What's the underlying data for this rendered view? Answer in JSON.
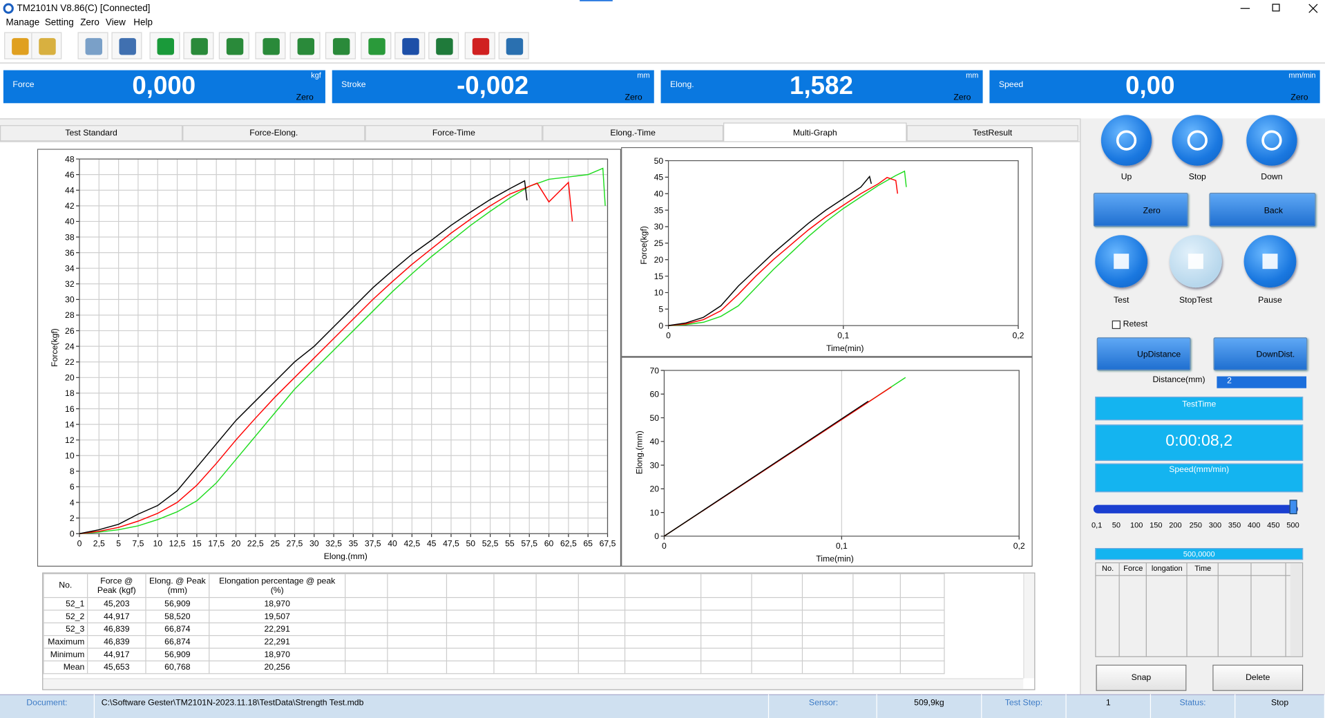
{
  "window": {
    "title": "TM2101N V8.86(C)  [Connected]"
  },
  "menu": [
    "Manage",
    "Setting",
    "Zero",
    "View",
    "Help"
  ],
  "displays": [
    {
      "label": "Force",
      "value": "0,000",
      "unit": "kgf",
      "action": "Zero"
    },
    {
      "label": "Stroke",
      "value": "-0,002",
      "unit": "mm",
      "action": "Zero"
    },
    {
      "label": "Elong.",
      "value": "1,582",
      "unit": "mm",
      "action": "Zero"
    },
    {
      "label": "Speed",
      "value": "0,00",
      "unit": "mm/min",
      "action": "Zero"
    }
  ],
  "tabs": [
    {
      "label": "Test Standard",
      "active": false
    },
    {
      "label": "Force-Elong.",
      "active": false
    },
    {
      "label": "Force-Time",
      "active": false
    },
    {
      "label": "Elong.-Time",
      "active": false
    },
    {
      "label": "Multi-Graph",
      "active": true
    },
    {
      "label": "TestResult",
      "active": false
    }
  ],
  "chart_data": [
    {
      "type": "line",
      "xlabel": "Elong.(mm)",
      "ylabel": "Force(kgf)",
      "grid": "both",
      "xlim": [
        0,
        67.5
      ],
      "ylim": [
        0,
        48
      ],
      "xticks": [
        0,
        {
          "value": 2.5,
          "label": "2,5"
        },
        5,
        {
          "value": 7.5,
          "label": "7,5"
        },
        10,
        {
          "value": 12.5,
          "label": "12,5"
        },
        15,
        {
          "value": 17.5,
          "label": "17,5"
        },
        20,
        {
          "value": 22.5,
          "label": "22,5"
        },
        25,
        {
          "value": 27.5,
          "label": "27,5"
        },
        30,
        {
          "value": 32.5,
          "label": "32,5"
        },
        35,
        {
          "value": 37.5,
          "label": "37,5"
        },
        40,
        {
          "value": 42.5,
          "label": "42,5"
        },
        45,
        {
          "value": 47.5,
          "label": "47,5"
        },
        50,
        {
          "value": 52.5,
          "label": "52,5"
        },
        55,
        {
          "value": 57.5,
          "label": "57,5"
        },
        60,
        {
          "value": 62.5,
          "label": "62,5"
        },
        65,
        {
          "value": 67.5,
          "label": "67,5"
        }
      ],
      "yticks": [
        0,
        2,
        4,
        6,
        8,
        10,
        12,
        14,
        16,
        18,
        20,
        22,
        24,
        26,
        28,
        30,
        32,
        34,
        36,
        38,
        40,
        42,
        44,
        46,
        48
      ],
      "series": [
        {
          "color": "#000000",
          "x": [
            0,
            2.5,
            5,
            7.5,
            10,
            12.5,
            15,
            17.5,
            20,
            22.5,
            25,
            27.5,
            30,
            32.5,
            35,
            37.5,
            40,
            42.5,
            45,
            47.5,
            50,
            52.5,
            55,
            56.9,
            57.2
          ],
          "values": [
            0,
            0.5,
            1.2,
            2.5,
            3.6,
            5.5,
            8.5,
            11.5,
            14.5,
            17,
            19.5,
            22,
            24,
            26.5,
            29,
            31.5,
            33.7,
            35.8,
            37.6,
            39.5,
            41.2,
            42.8,
            44.2,
            45.2,
            42.7
          ]
        },
        {
          "color": "#ff0000",
          "x": [
            0,
            2.5,
            5,
            7.5,
            10,
            12.5,
            15,
            17.5,
            20,
            22.5,
            25,
            27.5,
            30,
            32.5,
            35,
            37.5,
            40,
            42.5,
            45,
            47.5,
            50,
            52.5,
            55,
            58.5,
            60,
            61,
            62.5,
            63
          ],
          "values": [
            0,
            0.3,
            0.8,
            1.6,
            2.6,
            4,
            6.2,
            9,
            12,
            14.8,
            17.5,
            20,
            22.5,
            25,
            27.5,
            30,
            32.3,
            34.5,
            36.5,
            38.5,
            40.3,
            42,
            43.5,
            44.9,
            42.5,
            43.5,
            45,
            40
          ]
        },
        {
          "color": "#1fdc1f",
          "x": [
            0,
            2.5,
            5,
            7.5,
            10,
            12.5,
            15,
            17.5,
            20,
            22.5,
            25,
            27.5,
            30,
            32.5,
            35,
            37.5,
            40,
            42.5,
            45,
            47.5,
            50,
            52.5,
            55,
            57.5,
            60,
            62.5,
            65,
            66.9,
            67.2
          ],
          "values": [
            0,
            0.2,
            0.5,
            1,
            1.8,
            2.8,
            4.2,
            6.5,
            9.5,
            12.5,
            15.5,
            18.5,
            21,
            23.5,
            26,
            28.5,
            31,
            33.3,
            35.5,
            37.5,
            39.5,
            41.3,
            43,
            44.5,
            45.4,
            45.7,
            46,
            46.8,
            42
          ]
        }
      ]
    },
    {
      "type": "line",
      "xlabel": "Time(min)",
      "ylabel": "Force(kgf)",
      "grid": "x",
      "xlim": [
        0,
        0.2
      ],
      "ylim": [
        0,
        50
      ],
      "xticks": [
        0,
        {
          "value": 0.1,
          "label": "0,1"
        },
        {
          "value": 0.2,
          "label": "0,2"
        }
      ],
      "yticks": [
        0,
        5,
        10,
        15,
        20,
        25,
        30,
        35,
        40,
        45,
        50
      ],
      "series": [
        {
          "color": "#000000",
          "x": [
            0,
            0.01,
            0.02,
            0.03,
            0.04,
            0.05,
            0.06,
            0.07,
            0.08,
            0.09,
            0.1,
            0.11,
            0.115,
            0.116
          ],
          "values": [
            0,
            0.8,
            2.5,
            6,
            12,
            17,
            22,
            26.5,
            31,
            35,
            38.5,
            42,
            45.2,
            43
          ]
        },
        {
          "color": "#ff0000",
          "x": [
            0,
            0.01,
            0.02,
            0.03,
            0.04,
            0.05,
            0.06,
            0.07,
            0.08,
            0.09,
            0.1,
            0.11,
            0.12,
            0.125,
            0.13,
            0.131
          ],
          "values": [
            0,
            0.5,
            1.8,
            4.5,
            9.5,
            15,
            20,
            24.5,
            29,
            33,
            36.5,
            40,
            43,
            44.9,
            44,
            40
          ]
        },
        {
          "color": "#1fdc1f",
          "x": [
            0,
            0.01,
            0.02,
            0.03,
            0.04,
            0.05,
            0.06,
            0.07,
            0.08,
            0.09,
            0.1,
            0.11,
            0.12,
            0.13,
            0.135,
            0.136
          ],
          "values": [
            0,
            0.3,
            1,
            2.8,
            6,
            11.5,
            17,
            22,
            27,
            31.5,
            35.5,
            39,
            42.5,
            45.5,
            46.8,
            42
          ]
        }
      ]
    },
    {
      "type": "line",
      "xlabel": "Time(min)",
      "ylabel": "Elong.(mm)",
      "grid": "x",
      "xlim": [
        0,
        0.2
      ],
      "ylim": [
        0,
        70
      ],
      "xticks": [
        0,
        {
          "value": 0.1,
          "label": "0,1"
        },
        {
          "value": 0.2,
          "label": "0,2"
        }
      ],
      "yticks": [
        0,
        10,
        20,
        30,
        40,
        50,
        60,
        70
      ],
      "series": [
        {
          "color": "#000000",
          "x": [
            0,
            0.115
          ],
          "values": [
            0,
            57
          ]
        },
        {
          "color": "#ff0000",
          "x": [
            0,
            0.128
          ],
          "values": [
            0,
            63
          ]
        },
        {
          "color": "#1fdc1f",
          "x": [
            0,
            0.136
          ],
          "values": [
            0,
            67
          ]
        }
      ]
    }
  ],
  "results_table": {
    "columns": [
      "No.",
      "Force @ Peak (kgf)",
      "Elong. @ Peak (mm)",
      "Elongation percentage @ peak (%)"
    ],
    "rows": [
      [
        "52_1",
        "45,203",
        "56,909",
        "18,970"
      ],
      [
        "52_2",
        "44,917",
        "58,520",
        "19,507"
      ],
      [
        "52_3",
        "46,839",
        "66,874",
        "22,291"
      ],
      [
        "Maximum",
        "46,839",
        "66,874",
        "22,291"
      ],
      [
        "Minimum",
        "44,917",
        "56,909",
        "18,970"
      ],
      [
        "Mean",
        "45,653",
        "60,768",
        "20,256"
      ]
    ]
  },
  "controls": {
    "motion_buttons": [
      "Up",
      "Stop",
      "Down"
    ],
    "zero": "Zero",
    "back": "Back",
    "test_buttons": [
      "Test",
      "StopTest",
      "Pause"
    ],
    "retest": "Retest",
    "distance_buttons": [
      "UpDistance",
      "DownDist."
    ],
    "distance_label": "Distance(mm)",
    "distance_value": "2",
    "test_time_label": "TestTime",
    "test_time": "0:00:08,2",
    "speed_label": "Speed(mm/min)",
    "speed_scale": [
      "0,1",
      "50",
      "100",
      "150",
      "200",
      "250",
      "300",
      "350",
      "400",
      "450",
      "500"
    ],
    "speed_setting": "500,0000",
    "log_columns": [
      "No.",
      "Force",
      "longation",
      "Time"
    ],
    "snap": "Snap",
    "delete": "Delete"
  },
  "status_bar": [
    {
      "label": "Document:",
      "value": "C:\\Software Gester\\TM2101N-2023.11.18\\TestData\\Strength Test.mdb"
    },
    {
      "label": "Sensor:",
      "value": "509,9kg"
    },
    {
      "label": "Test Step:",
      "value": "1"
    },
    {
      "label": "Status:",
      "value": "Stop"
    }
  ]
}
